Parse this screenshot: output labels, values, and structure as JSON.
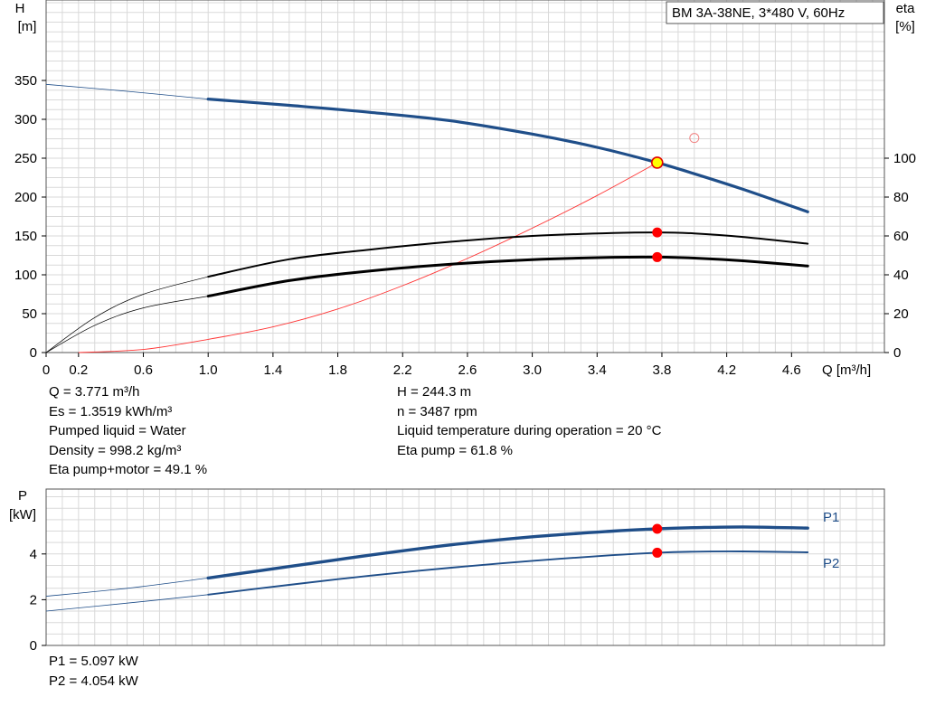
{
  "pump_label": "BM 3A-38NE, 3*480 V, 60Hz",
  "chart_data": [
    {
      "type": "line",
      "title": "",
      "ylabel_left": [
        "H",
        "[m]"
      ],
      "ylabel_right": [
        "eta",
        "[%]"
      ],
      "xlabel": "Q [m³/h]",
      "xlim": [
        0,
        5.0
      ],
      "ylim_left": [
        0,
        400
      ],
      "ylim_right": [
        0,
        100
      ],
      "x_ticks": [
        "0",
        "0.2",
        "0.6",
        "1.0",
        "1.4",
        "1.8",
        "2.2",
        "2.6",
        "3.0",
        "3.4",
        "3.8",
        "4.2",
        "4.6"
      ],
      "y_ticks_left": [
        "0",
        "50",
        "100",
        "150",
        "200",
        "250",
        "300",
        "350"
      ],
      "y_ticks_right": [
        "0",
        "20",
        "40",
        "60",
        "80",
        "100"
      ],
      "grid": true,
      "colors": {
        "head": "#1f4e89",
        "eta_pump": "#000000",
        "eta_total": "#000000",
        "system": "#ff3333",
        "op_point": "#ff0000",
        "op_point_h": "#ffff00"
      },
      "series": [
        {
          "key": "head",
          "x": [
            0,
            0.5,
            1.0,
            1.5,
            2.0,
            2.5,
            3.0,
            3.4,
            3.771,
            4.0,
            4.3,
            4.7
          ],
          "y": [
            345,
            336,
            326,
            318,
            309,
            298,
            281,
            264,
            244.3,
            230,
            210,
            181
          ]
        },
        {
          "key": "eta_pump",
          "x": [
            0,
            0.3,
            0.6,
            1.0,
            1.5,
            2.0,
            2.5,
            3.0,
            3.5,
            3.771,
            4.0,
            4.3,
            4.7
          ],
          "y": [
            0,
            18,
            30,
            39,
            48,
            53,
            57,
            60,
            61.5,
            61.8,
            61.3,
            59.5,
            56
          ]
        },
        {
          "key": "eta_total",
          "x": [
            0,
            0.3,
            0.6,
            1.0,
            1.5,
            2.0,
            2.5,
            3.0,
            3.5,
            3.771,
            4.0,
            4.3,
            4.7
          ],
          "y": [
            0,
            14,
            23,
            29,
            37,
            42,
            45.5,
            47.8,
            49,
            49.1,
            48.6,
            47.2,
            44.5
          ]
        },
        {
          "key": "system",
          "x": [
            0.2,
            0.6,
            1.0,
            1.4,
            1.8,
            2.2,
            2.6,
            3.0,
            3.4,
            3.771
          ],
          "y": [
            0,
            4,
            17,
            33,
            56,
            86,
            121,
            160,
            202,
            244.3
          ]
        }
      ],
      "operating_point": {
        "q": 3.771,
        "h": 244.3,
        "eta_pump": 61.8,
        "eta_total": 49.1
      },
      "duty_point": {
        "q": 4.0,
        "h": 276
      }
    },
    {
      "type": "line",
      "title": "",
      "ylabel": [
        "P",
        "[kW]"
      ],
      "xlim": [
        0,
        5.0
      ],
      "ylim": [
        0,
        6
      ],
      "y_ticks": [
        "0",
        "2",
        "4"
      ],
      "grid": true,
      "color": "#1f4e89",
      "series": [
        {
          "name": "P1",
          "x": [
            0,
            0.5,
            1.0,
            1.5,
            2.0,
            2.5,
            3.0,
            3.5,
            3.771,
            4.0,
            4.3,
            4.7
          ],
          "y": [
            2.15,
            2.5,
            2.95,
            3.45,
            3.95,
            4.4,
            4.75,
            5.0,
            5.097,
            5.15,
            5.18,
            5.13
          ]
        },
        {
          "name": "P2",
          "x": [
            0,
            0.5,
            1.0,
            1.5,
            2.0,
            2.5,
            3.0,
            3.5,
            3.771,
            4.0,
            4.3,
            4.7
          ],
          "y": [
            1.5,
            1.85,
            2.22,
            2.65,
            3.05,
            3.4,
            3.7,
            3.95,
            4.054,
            4.1,
            4.11,
            4.07
          ]
        }
      ],
      "operating_point": {
        "q": 3.771,
        "p1": 5.097,
        "p2": 4.054
      }
    }
  ],
  "results": {
    "left": [
      "Q = 3.771 m³/h",
      "Es = 1.3519 kWh/m³",
      "Pumped liquid = Water",
      "Density = 998.2 kg/m³",
      "Eta pump+motor = 49.1 %"
    ],
    "right": [
      "H = 244.3 m",
      "n = 3487 rpm",
      "Liquid temperature during operation = 20 °C",
      "Eta pump = 61.8 %"
    ],
    "power": [
      "P1 = 5.097 kW",
      "P2 = 4.054 kW"
    ]
  }
}
